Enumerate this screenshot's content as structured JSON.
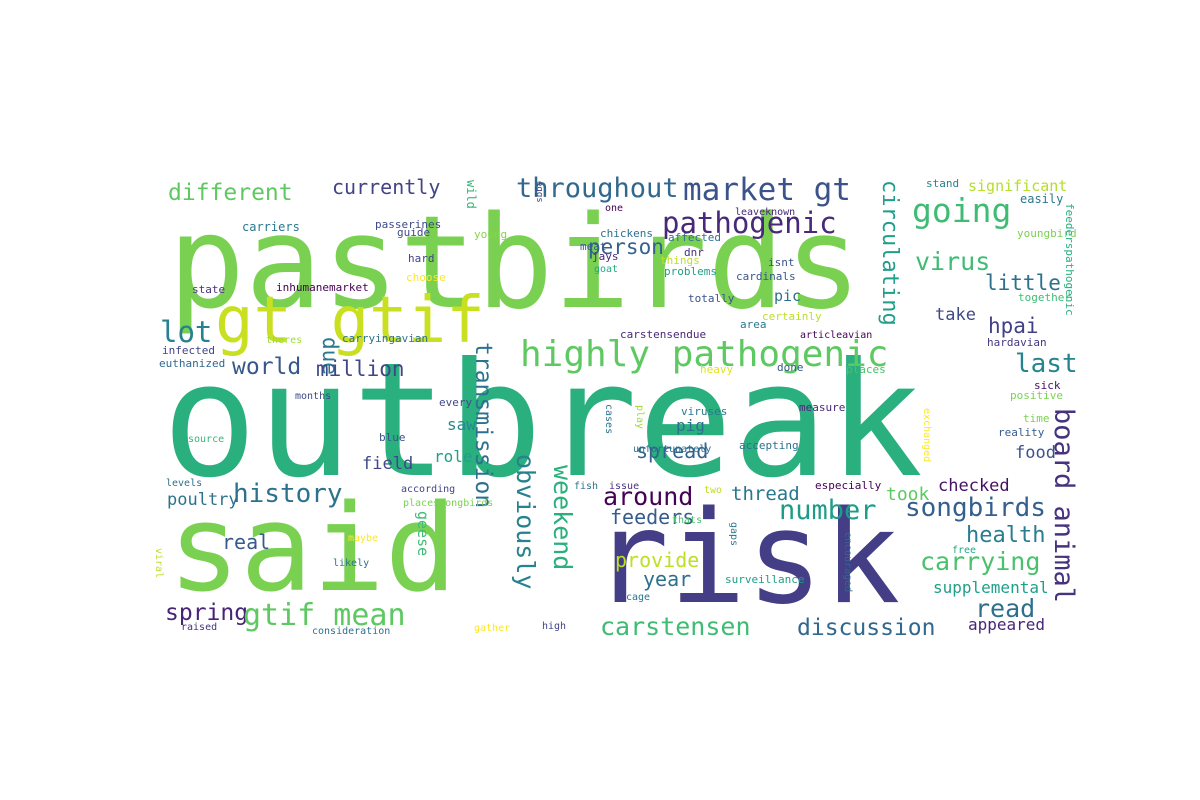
{
  "words": [
    {
      "text": "outbreak",
      "color": "#2aaf7f"
    },
    {
      "text": "pastbirds",
      "color": "#7ad151"
    },
    {
      "text": "said",
      "color": "#7ad151"
    },
    {
      "text": "risk",
      "color": "#433e85"
    },
    {
      "text": "gt gtif",
      "color": "#c8e020"
    },
    {
      "text": "highly pathogenic",
      "color": "#5ec962"
    },
    {
      "text": "market gt",
      "color": "#3b528b"
    },
    {
      "text": "throughout",
      "color": "#31688e"
    },
    {
      "text": "pathogenic",
      "color": "#482878"
    },
    {
      "text": "going",
      "color": "#3fbc73"
    },
    {
      "text": "different",
      "color": "#5ec962"
    },
    {
      "text": "currently",
      "color": "#414487"
    },
    {
      "text": "significant",
      "color": "#b5de2b"
    },
    {
      "text": "virus",
      "color": "#3fbc73"
    },
    {
      "text": "little",
      "color": "#2d708e"
    },
    {
      "text": "take",
      "color": "#3e4989"
    },
    {
      "text": "hpai",
      "color": "#424086"
    },
    {
      "text": "last",
      "color": "#25848e"
    },
    {
      "text": "lot",
      "color": "#26828e"
    },
    {
      "text": "due",
      "color": "#2a788e"
    },
    {
      "text": "world",
      "color": "#38588c"
    },
    {
      "text": "million",
      "color": "#3f4788"
    },
    {
      "text": "person",
      "color": "#33638d"
    },
    {
      "text": "circulating",
      "color": "#1f9e89"
    },
    {
      "text": "history",
      "color": "#2c728e"
    },
    {
      "text": "transmission",
      "color": "#2c728e"
    },
    {
      "text": "pic",
      "color": "#2c728e"
    },
    {
      "text": "number",
      "color": "#1e9b8a"
    },
    {
      "text": "songbirds",
      "color": "#355f8d"
    },
    {
      "text": "around",
      "color": "#440154"
    },
    {
      "text": "thread",
      "color": "#2a768e"
    },
    {
      "text": "obviously",
      "color": "#26828e"
    },
    {
      "text": "weekend",
      "color": "#2ab07f"
    },
    {
      "text": "feeders",
      "color": "#365c8d"
    },
    {
      "text": "provide",
      "color": "#bddf26"
    },
    {
      "text": "year",
      "color": "#2d708e"
    },
    {
      "text": "carrying",
      "color": "#4ac16d"
    },
    {
      "text": "board animal",
      "color": "#46327e"
    },
    {
      "text": "health",
      "color": "#287d8e"
    },
    {
      "text": "spring",
      "color": "#482475"
    },
    {
      "text": "gtif mean",
      "color": "#5ec962"
    },
    {
      "text": "carstensen",
      "color": "#3fbc73"
    },
    {
      "text": "discussion",
      "color": "#31688e"
    },
    {
      "text": "read",
      "color": "#2e6f8e"
    },
    {
      "text": "real",
      "color": "#375a8c"
    },
    {
      "text": "poultry",
      "color": "#2c728e"
    },
    {
      "text": "field",
      "color": "#3f4788"
    },
    {
      "text": "role",
      "color": "#1fa088"
    },
    {
      "text": "saw",
      "color": "#23898e"
    },
    {
      "text": "spread",
      "color": "#33638d"
    },
    {
      "text": "pig",
      "color": "#2d708e"
    },
    {
      "text": "food",
      "color": "#3b528b"
    },
    {
      "text": "took",
      "color": "#5ec962"
    },
    {
      "text": "checked",
      "color": "#471063"
    },
    {
      "text": "supplemental",
      "color": "#1fa088"
    },
    {
      "text": "appeared",
      "color": "#482677"
    },
    {
      "text": "geese",
      "color": "#3fbc73"
    },
    {
      "text": "stand",
      "color": "#26828e"
    },
    {
      "text": "easily",
      "color": "#2a788e"
    },
    {
      "text": "wild",
      "color": "#35b779"
    },
    {
      "text": "carriers",
      "color": "#2a788e"
    },
    {
      "text": "passerines",
      "color": "#3e4989"
    },
    {
      "text": "guide",
      "color": "#3e4989"
    },
    {
      "text": "hard",
      "color": "#414487"
    },
    {
      "text": "young",
      "color": "#86d549"
    },
    {
      "text": "eggs",
      "color": "#414487"
    },
    {
      "text": "one",
      "color": "#440154"
    },
    {
      "text": "leaveknown",
      "color": "#482878"
    },
    {
      "text": "affected",
      "color": "#2d708e"
    },
    {
      "text": "youngbird",
      "color": "#7ad151"
    },
    {
      "text": "feederspathogenic",
      "color": "#2aaf7f"
    },
    {
      "text": "chickens",
      "color": "#2c728e"
    },
    {
      "text": "meat",
      "color": "#365c8d"
    },
    {
      "text": "jays",
      "color": "#482878"
    },
    {
      "text": "goat",
      "color": "#22a884"
    },
    {
      "text": "things",
      "color": "#bddf26"
    },
    {
      "text": "problems",
      "color": "#1fa088"
    },
    {
      "text": "dnr",
      "color": "#46337f"
    },
    {
      "text": "isnt",
      "color": "#3b528b"
    },
    {
      "text": "cardinals",
      "color": "#38588c"
    },
    {
      "text": "totally",
      "color": "#3b528b"
    },
    {
      "text": "certainly",
      "color": "#bddf26"
    },
    {
      "text": "area",
      "color": "#2a788e"
    },
    {
      "text": "together",
      "color": "#3fbc73"
    },
    {
      "text": "choose",
      "color": "#fde725"
    },
    {
      "text": "state",
      "color": "#46327e"
    },
    {
      "text": "inhumanemarket",
      "color": "#440154"
    },
    {
      "text": "theres",
      "color": "#a0da39"
    },
    {
      "text": "infected",
      "color": "#414487"
    },
    {
      "text": "carryingavian",
      "color": "#2d708e"
    },
    {
      "text": "carstensendue",
      "color": "#482878"
    },
    {
      "text": "articleavian",
      "color": "#440154"
    },
    {
      "text": "hardavian",
      "color": "#453781"
    },
    {
      "text": "euthanized",
      "color": "#31688e"
    },
    {
      "text": "heavy",
      "color": "#e2e418"
    },
    {
      "text": "done",
      "color": "#38588c"
    },
    {
      "text": "places",
      "color": "#4ac16d"
    },
    {
      "text": "sick",
      "color": "#471063"
    },
    {
      "text": "positive",
      "color": "#7ad151"
    },
    {
      "text": "months",
      "color": "#3e4989"
    },
    {
      "text": "every",
      "color": "#3e4989"
    },
    {
      "text": "cases",
      "color": "#2c728e"
    },
    {
      "text": "play",
      "color": "#a0da39"
    },
    {
      "text": "viruses",
      "color": "#2a788e"
    },
    {
      "text": "measure",
      "color": "#482878"
    },
    {
      "text": "time",
      "color": "#7ad151"
    },
    {
      "text": "reality",
      "color": "#365c8d"
    },
    {
      "text": "source",
      "color": "#35b779"
    },
    {
      "text": "blue",
      "color": "#3b528b"
    },
    {
      "text": "accepting",
      "color": "#2c728e"
    },
    {
      "text": "exchanged",
      "color": "#fde725"
    },
    {
      "text": "unfortunately",
      "color": "#2d708e"
    },
    {
      "text": "levels",
      "color": "#2d708e"
    },
    {
      "text": "according",
      "color": "#414487"
    },
    {
      "text": "fish",
      "color": "#2c728e"
    },
    {
      "text": "issue",
      "color": "#46327e"
    },
    {
      "text": "two",
      "color": "#bddf26"
    },
    {
      "text": "especially",
      "color": "#440154"
    },
    {
      "text": "placessongbirds",
      "color": "#7ad151"
    },
    {
      "text": "thats",
      "color": "#4ac16d"
    },
    {
      "text": "viral",
      "color": "#bddf26"
    },
    {
      "text": "maybe",
      "color": "#fde725"
    },
    {
      "text": "likely",
      "color": "#2c728e"
    },
    {
      "text": "gaps",
      "color": "#2a788e"
    },
    {
      "text": "encouraged",
      "color": "#31688e"
    },
    {
      "text": "free",
      "color": "#22a884"
    },
    {
      "text": "surveillance",
      "color": "#1f9e89"
    },
    {
      "text": "cage",
      "color": "#2c728e"
    },
    {
      "text": "raised",
      "color": "#46327e"
    },
    {
      "text": "consideration",
      "color": "#2d708e"
    },
    {
      "text": "gather",
      "color": "#fde725"
    },
    {
      "text": "high",
      "color": "#414487"
    }
  ]
}
